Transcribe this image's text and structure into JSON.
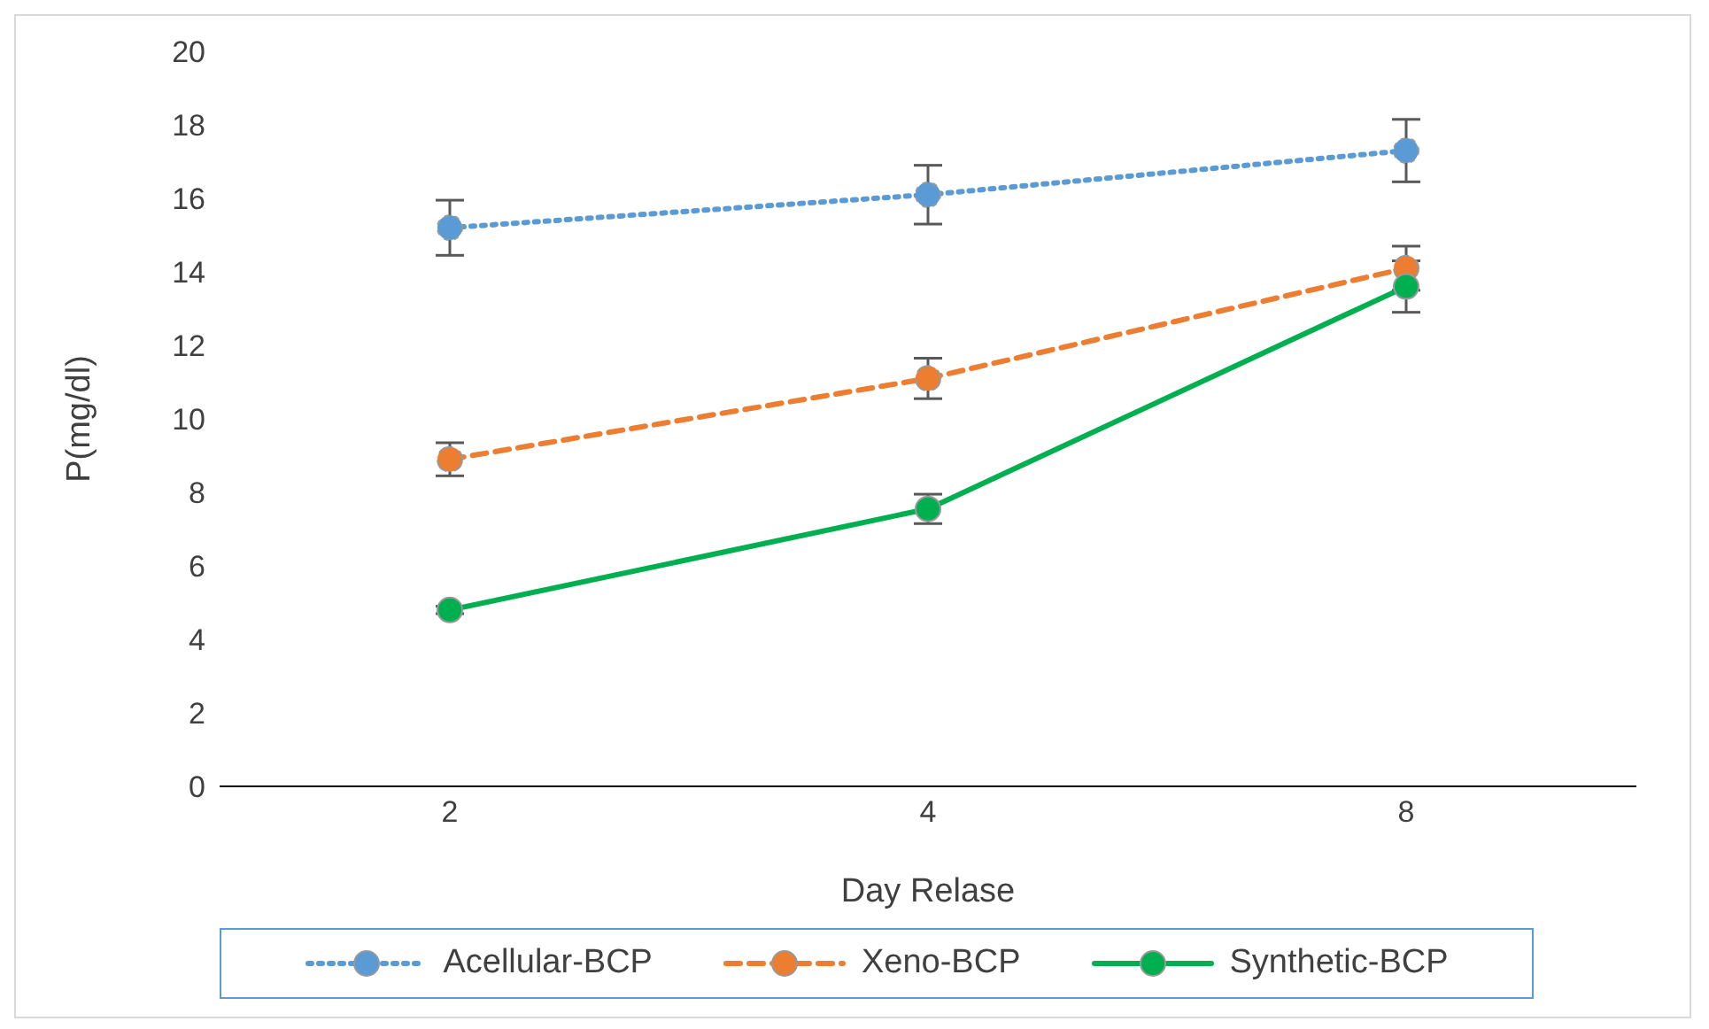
{
  "chart_data": {
    "type": "line",
    "xlabel": "Day Relase",
    "ylabel": "P(mg/dl)",
    "categories": [
      "2",
      "4",
      "8"
    ],
    "ylim": [
      0,
      20
    ],
    "yticks": [
      0,
      2,
      4,
      6,
      8,
      10,
      12,
      14,
      16,
      18,
      20
    ],
    "grid": false,
    "legend": "bottom",
    "marker": "circle",
    "series": [
      {
        "name": "Acellular-BCP",
        "color": "#5b9bd5",
        "line_style": "dotted",
        "values": [
          15.2,
          16.1,
          17.3
        ],
        "errors": [
          0.75,
          0.8,
          0.85
        ]
      },
      {
        "name": "Xeno-BCP",
        "color": "#ed7d31",
        "line_style": "dashed",
        "values": [
          8.9,
          11.1,
          14.1
        ],
        "errors": [
          0.45,
          0.55,
          0.6
        ]
      },
      {
        "name": "Synthetic-BCP",
        "color": "#00b050",
        "line_style": "solid",
        "values": [
          4.8,
          7.55,
          13.6
        ],
        "errors": [
          0.1,
          0.4,
          0.7
        ]
      }
    ]
  }
}
